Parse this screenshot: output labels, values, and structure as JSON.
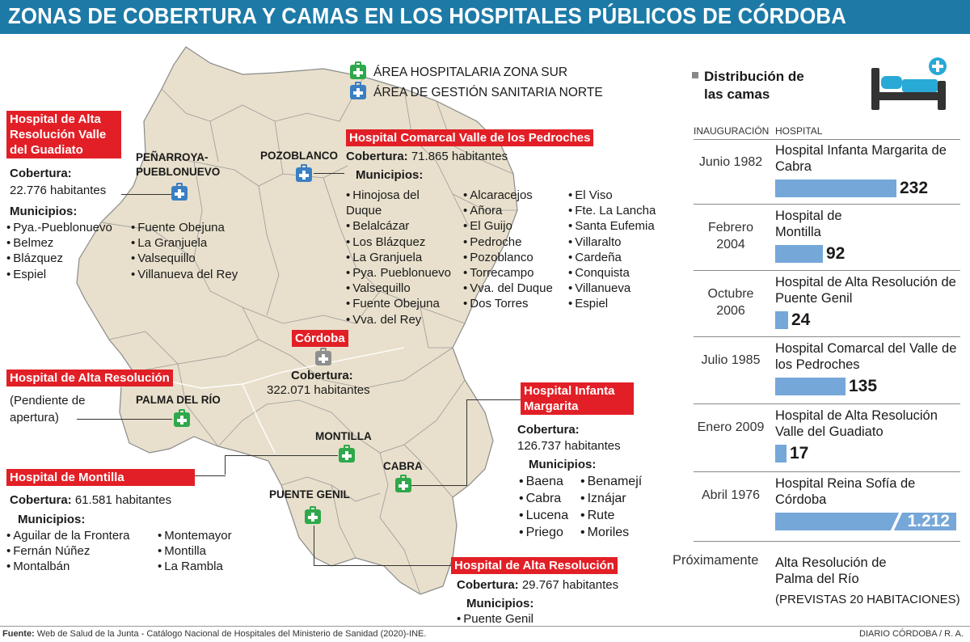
{
  "title": "ZONAS DE COBERTURA Y CAMAS EN LOS HOSPITALES PÚBLICOS DE CÓRDOBA",
  "colors": {
    "title_bg": "#1d7aa6",
    "label_red": "#e21f26",
    "map_fill": "#e8e0cc",
    "zona_sur": "#2ea84a",
    "gestion_norte": "#3a7fc4",
    "bar": "#76a7d9"
  },
  "legend": {
    "sur": "ÁREA HOSPITALARIA ZONA SUR",
    "norte": "ÁREA DE GESTIÓN SANITARIA NORTE"
  },
  "map": {
    "towns": {
      "penarroya": "PEÑARROYA-\nPUEBLONUEVO",
      "pozoblanco": "POZOBLANCO",
      "palma": "PALMA DEL RÍO",
      "montilla": "MONTILLA",
      "cabra": "CABRA",
      "puente_genil": "PUENTE GENIL"
    },
    "guadiato": {
      "label": "Hospital de Alta Resolución Valle del Guadiato",
      "cobertura_label": "Cobertura:",
      "cobertura_value": "22.776 habitantes",
      "municipios_label": "Municipios:",
      "col1": [
        "Pya.-Pueblonuevo",
        "Belmez",
        "Blázquez",
        "Espiel"
      ],
      "col2": [
        "Fuente Obejuna",
        "La Granjuela",
        "Valsequillo",
        "Villanueva del Rey"
      ]
    },
    "pedroches": {
      "label": "Hospital Comarcal Valle de los Pedroches",
      "cobertura_label": "Cobertura:",
      "cobertura_value": " 71.865 habitantes",
      "municipios_label": "Municipios:",
      "col1": [
        "Hinojosa del Duque",
        "Belalcázar",
        "Los Blázquez",
        "La Granjuela",
        "Pya. Pueblonuevo",
        "Valsequillo",
        "Fuente Obejuna",
        "Vva. del Rey"
      ],
      "col2": [
        "Alcaracejos",
        "Añora",
        "El Guijo",
        "Pedroche",
        "Pozoblanco",
        "Torrecampo",
        "Vva. del Duque",
        "Dos Torres"
      ],
      "col3": [
        "El Viso",
        "Fte. La Lancha",
        "Santa Eufemia",
        "Villaralto",
        "Cardeña",
        "Conquista",
        "Villanueva",
        "Espiel"
      ]
    },
    "cordoba": {
      "label": "Córdoba",
      "cobertura_label": "Cobertura:",
      "cobertura_value": "322.071 habitantes"
    },
    "palma": {
      "label": "Hospital de Alta Resolución",
      "note": "(Pendiente de apertura)"
    },
    "infanta": {
      "label": "Hospital Infanta Margarita",
      "cobertura_label": "Cobertura:",
      "cobertura_value": "126.737 habitantes",
      "municipios_label": "Municipios:",
      "col1": [
        "Baena",
        "Cabra",
        "Lucena",
        "Priego"
      ],
      "col2": [
        "Benamejí",
        "Iznájar",
        "Rute",
        "Moriles"
      ]
    },
    "montilla": {
      "label": "Hospital de Montilla",
      "cobertura_label": "Cobertura:",
      "cobertura_value": " 61.581 habitantes",
      "municipios_label": "Municipios:",
      "col1": [
        "Aguilar de la Frontera",
        "Fernán Núñez",
        "Montalbán"
      ],
      "col2": [
        "Montemayor",
        "Montilla",
        "La Rambla"
      ]
    },
    "puente_genil": {
      "label": "Hospital de Alta Resolución",
      "cobertura_label": "Cobertura:",
      "cobertura_value": " 29.767 habitantes",
      "municipios_label": "Municipios:",
      "col1": [
        "Puente Genil"
      ]
    }
  },
  "camas": {
    "title": "Distribución de las camas",
    "col_inauguracion": "INAUGURACIÓN",
    "col_hospital": "HOSPITAL",
    "rows": [
      {
        "date": "Junio 1982",
        "hospital": "Hospital Infanta Margarita de Cabra",
        "beds": 232,
        "label": "232"
      },
      {
        "date": "Febrero 2004",
        "hospital": "Hospital de Montilla",
        "beds": 92,
        "label": "92"
      },
      {
        "date": "Octubre 2006",
        "hospital": "Hospital de Alta Resolución de Puente Genil",
        "beds": 24,
        "label": "24"
      },
      {
        "date": "Julio 1985",
        "hospital": "Hospital Comarcal del Valle de los Pedroches",
        "beds": 135,
        "label": "135"
      },
      {
        "date": "Enero 2009",
        "hospital": "Hospital de Alta Resolución Valle del Guadiato",
        "beds": 17,
        "label": "17"
      },
      {
        "date": "Abril 1976",
        "hospital": "Hospital Reina Sofía de Córdoba",
        "beds": 1212,
        "label": "1.212"
      }
    ],
    "proximamente_label": "Próximamente",
    "proximamente_hospital": "Alta Resolución de Palma del Río",
    "proximamente_note": "(PREVISTAS 20 HABITACIONES)"
  },
  "footer": {
    "source_label": "Fuente:",
    "source_text": " Web de Salud de la Junta - Catálogo Nacional de Hospitales del Ministerio de Sanidad (2020)-INE.",
    "credit": "DIARIO CÓRDOBA / R. A."
  }
}
